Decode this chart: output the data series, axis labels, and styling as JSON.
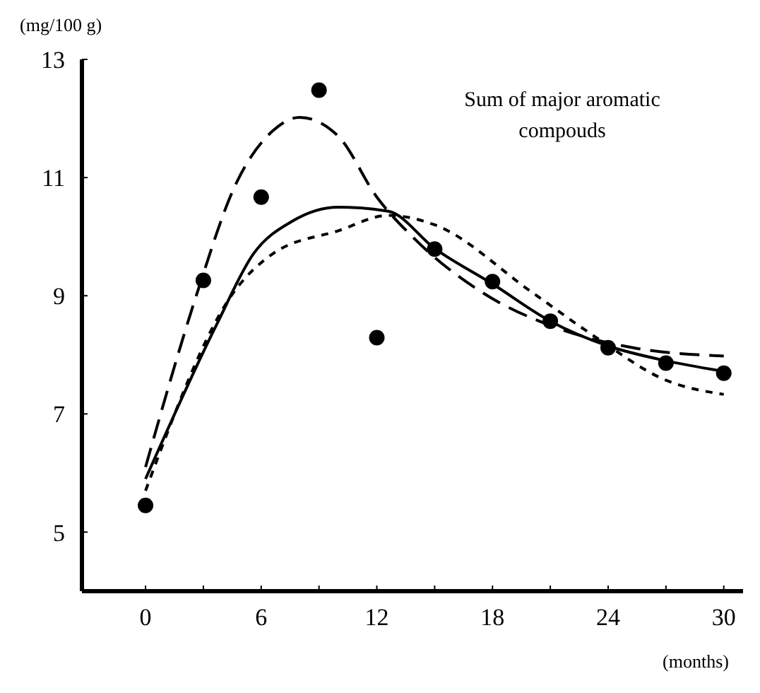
{
  "chart_data": {
    "type": "line",
    "ylabel": "(mg/100 g)",
    "xlabel": "(months)",
    "annotations": [
      "Sum of major aromatic compouds"
    ],
    "xlim": [
      -3.3,
      31
    ],
    "ylim": [
      4,
      13
    ],
    "xticks": [
      0,
      {
        "value": 3,
        "label": null
      },
      6,
      {
        "value": 9,
        "label": null
      },
      12,
      {
        "value": 15,
        "label": null
      },
      18,
      {
        "value": 21,
        "label": null
      },
      24,
      {
        "value": 27,
        "label": null
      },
      30
    ],
    "yticks": [
      5,
      7,
      9,
      11,
      13
    ],
    "grid": false,
    "series": [
      {
        "type": "scatter",
        "color": "#000000",
        "marker": "circle",
        "x": [
          0,
          3,
          6,
          9,
          12,
          15,
          18,
          21,
          24,
          27,
          30
        ],
        "values": [
          5.45,
          9.26,
          10.67,
          12.48,
          8.29,
          9.79,
          9.24,
          8.57,
          8.12,
          7.86,
          7.69
        ]
      },
      {
        "color": "#000000",
        "line_style": "dashed",
        "marker": "none",
        "x": [
          0,
          2.7,
          4.6,
          6.6,
          8,
          10,
          12,
          14,
          17.4,
          21.4,
          25.3,
          30
        ],
        "values": [
          6.1,
          9.07,
          10.83,
          11.79,
          12.02,
          11.7,
          10.67,
          9.95,
          9.07,
          8.45,
          8.12,
          7.98
        ]
      },
      {
        "color": "#000000",
        "line_style": "solid",
        "marker": "none",
        "x": [
          0,
          3.7,
          5.6,
          7.6,
          10,
          12.6,
          15,
          18,
          21,
          24,
          27,
          30
        ],
        "values": [
          5.9,
          8.52,
          9.71,
          10.26,
          10.5,
          10.43,
          9.8,
          9.2,
          8.57,
          8.15,
          7.9,
          7.72
        ]
      },
      {
        "color": "#000000",
        "line_style": "dotted",
        "marker": "none",
        "x": [
          0,
          4.6,
          6.6,
          10,
          12.6,
          15,
          20,
          23.4,
          27,
          30
        ],
        "values": [
          5.7,
          9.07,
          9.71,
          10.1,
          10.36,
          10.2,
          9.07,
          8.29,
          7.57,
          7.33
        ]
      }
    ]
  }
}
